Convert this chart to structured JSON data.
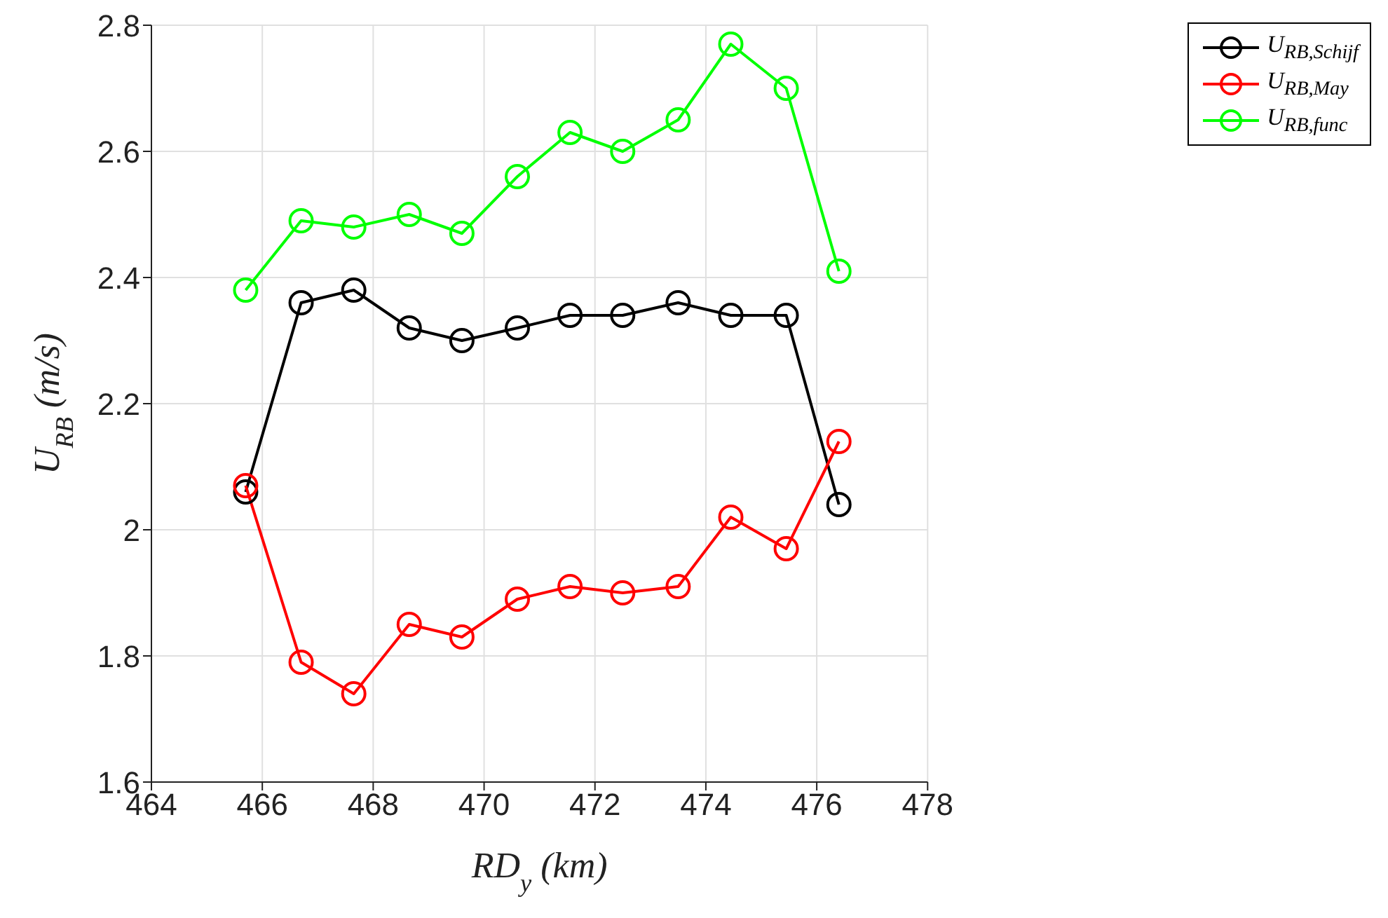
{
  "chart_data": {
    "type": "line",
    "xlabel": "RD$_{y}$ (km)",
    "ylabel": "U$_{RB}$ (m/s)",
    "x": [
      465.7,
      466.7,
      467.65,
      468.65,
      469.6,
      470.6,
      471.55,
      472.5,
      473.5,
      474.45,
      475.45,
      476.4
    ],
    "series": [
      {
        "name": "U$_{RB,Schijf}$",
        "color": "#000000",
        "values": [
          2.06,
          2.36,
          2.38,
          2.32,
          2.3,
          2.32,
          2.34,
          2.34,
          2.36,
          2.34,
          2.34,
          2.04
        ]
      },
      {
        "name": "U$_{RB,May}$",
        "color": "#ff0000",
        "values": [
          2.07,
          1.79,
          1.74,
          1.85,
          1.83,
          1.89,
          1.91,
          1.9,
          1.91,
          2.02,
          1.97,
          2.14
        ]
      },
      {
        "name": "U$_{RB,func}$",
        "color": "#00ff00",
        "values": [
          2.38,
          2.49,
          2.48,
          2.5,
          2.47,
          2.56,
          2.63,
          2.6,
          2.65,
          2.77,
          2.7,
          2.41
        ]
      }
    ],
    "xlim": [
      464,
      478
    ],
    "xticks": [
      464,
      466,
      468,
      470,
      472,
      474,
      476,
      478
    ],
    "ylim": [
      1.6,
      2.8
    ],
    "yticks": [
      1.6,
      1.8,
      2,
      2.2,
      2.4,
      2.6,
      2.8
    ],
    "grid": true,
    "legend": "top right",
    "marker": "circle",
    "line_style": "solid"
  }
}
